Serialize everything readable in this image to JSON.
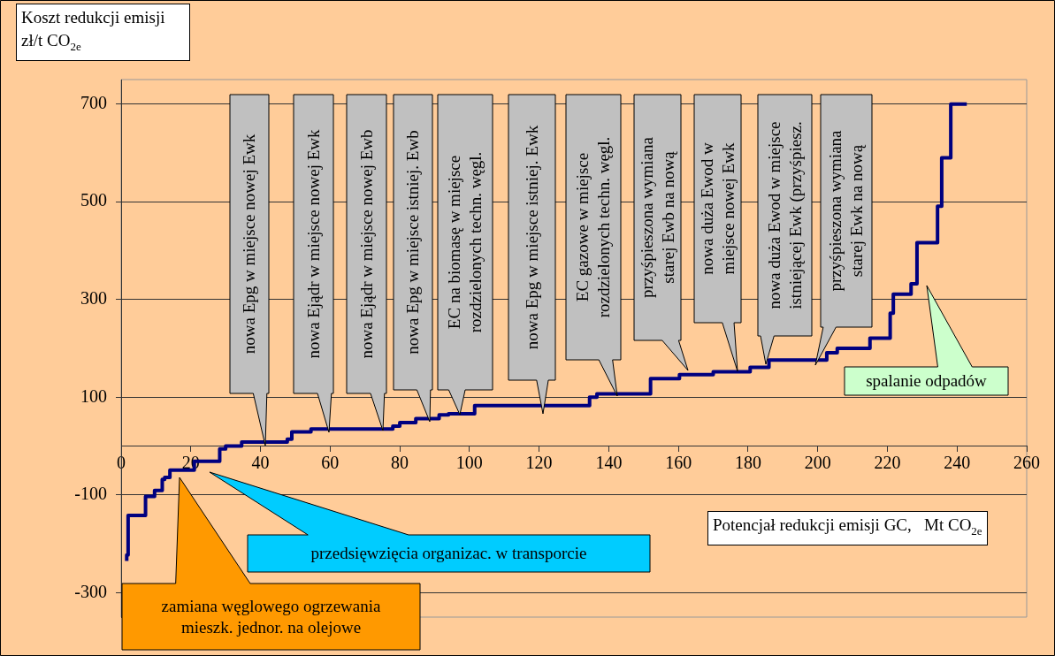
{
  "chart_data": {
    "type": "step",
    "xlabel": "Potencjał redukcji emisji GC,   Mt CO$_{2e}$",
    "ylabel": "Koszt redukcji emisji zł/t CO$_{2e}$",
    "x": [
      1.6,
      2,
      7,
      9.6,
      11.8,
      12.5,
      14,
      21,
      28.3,
      30,
      34.6,
      47.7,
      49,
      54.5,
      78,
      80,
      84.6,
      91.3,
      94,
      101.5,
      134.5,
      136.6,
      152,
      160.3,
      170,
      180.6,
      186,
      202.6,
      205.6,
      215,
      220.8,
      221.7,
      226.8,
      228.5,
      234.4,
      235.6,
      238.2,
      239,
      242.8
    ],
    "series": [
      {
        "color": "#000080",
        "values": [
          -235,
          -223,
          -142,
          -103,
          -91,
          -68,
          -64,
          -49,
          -31,
          -6,
          0,
          8,
          14,
          29,
          35,
          41,
          48,
          56,
          64,
          66,
          83,
          100,
          107,
          138,
          146,
          152,
          161,
          176,
          191,
          200,
          221,
          272,
          311,
          332,
          416,
          491,
          590,
          700,
          700
        ]
      }
    ],
    "xlim": [
      0,
      260
    ],
    "xticks": [
      0,
      20,
      40,
      60,
      80,
      100,
      120,
      140,
      160,
      180,
      200,
      220,
      240,
      260
    ],
    "ylim": [
      -350,
      750
    ],
    "yticks": [
      -300,
      -100,
      100,
      300,
      500,
      700
    ],
    "grid": "y",
    "legend": false,
    "marker": "none",
    "line_style": "solid",
    "annotations": [
      "nowa Epg w miejsce nowej Ewk",
      "nowa Ejądr w miejsce nowej Ewk",
      "nowa Ejądr w miejsce nowej Ewb",
      "nowa Epg w miejsce istniej. Ewb",
      "EC na biomasę w miejsce rozdzielonych techn. węgl.",
      "nowa Epg w miejsce istniej. Ewk",
      "EC gazowe w miejsce rozdzielonych techn. węgl.",
      "przyśpieszona wymiana starej Ewb na nową",
      "nowa duża Ewod w miejsce nowej Ewk",
      "nowa duża Ewod w miejsce istniejącej Ewk (przyśpiesz.",
      "przyśpieszona wymiana starej Ewk na nową",
      "spalanie odpadów",
      "przedsięwzięcia organizac. w transporcie",
      "zamiana węglowego ogrzewania mieszk. jednor. na olejowe"
    ]
  }
}
